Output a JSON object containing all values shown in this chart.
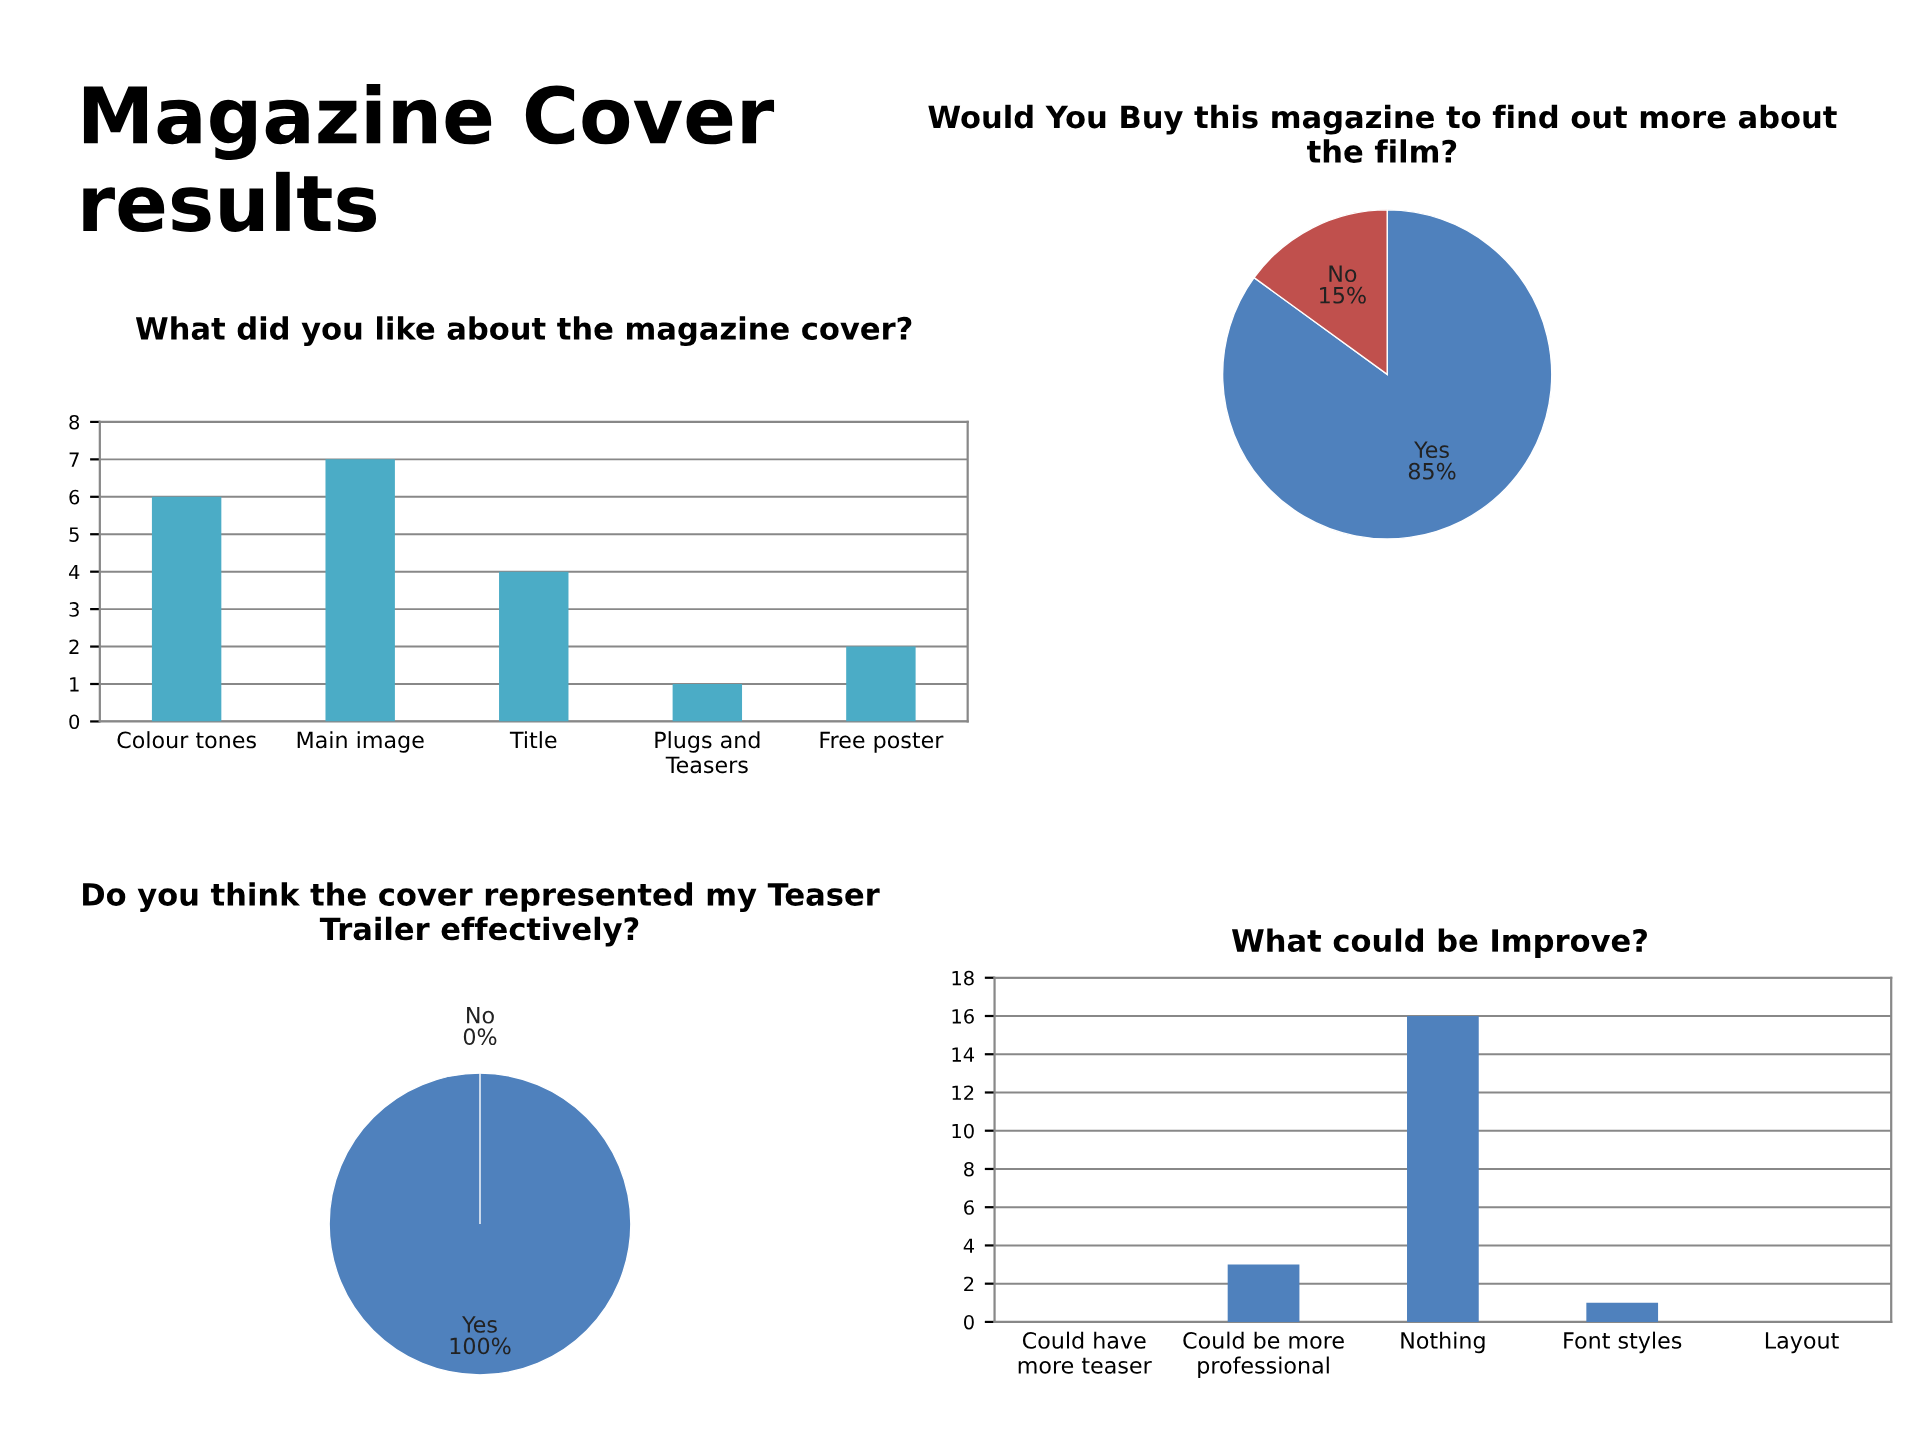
{
  "chart_data": [
    {
      "type": "bar",
      "title": "What did you like about the magazine cover?",
      "annotations": [
        "Magazine Cover results"
      ],
      "categories": [
        "Colour tones",
        "Main image",
        "Title",
        "Plugs and\nTeasers",
        "Free poster"
      ],
      "values": [
        6,
        7,
        4,
        1,
        2
      ],
      "color": "#4bacc6",
      "ylim": [
        0,
        8
      ],
      "yticks": [
        0,
        1,
        2,
        3,
        4,
        5,
        6,
        7,
        8
      ],
      "grid": "y"
    },
    {
      "type": "pie",
      "title": "Would You Buy this magazine to find out more about the film?",
      "categories": [
        "Yes",
        "No"
      ],
      "values": [
        85,
        15
      ],
      "value_labels": [
        "85%",
        "15%"
      ],
      "colors": [
        "#4f81bd",
        "#c0504d"
      ]
    },
    {
      "type": "pie",
      "title": "Do you think the cover represented my Teaser Trailer effectively?",
      "categories": [
        "Yes",
        "No"
      ],
      "values": [
        100,
        0
      ],
      "value_labels": [
        "100%",
        "0%"
      ],
      "colors": [
        "#4f81bd",
        "#c0504d"
      ]
    },
    {
      "type": "bar",
      "title": "What could be Improve?",
      "categories": [
        "Could have\nmore teaser",
        "Could be more\nprofessional",
        "Nothing",
        "Font styles",
        "Layout"
      ],
      "values": [
        0,
        3,
        16,
        1,
        0
      ],
      "color": "#4f81bd",
      "ylim": [
        0,
        18
      ],
      "yticks": [
        0,
        2,
        4,
        6,
        8,
        10,
        12,
        14,
        16,
        18
      ],
      "grid": "y"
    }
  ]
}
